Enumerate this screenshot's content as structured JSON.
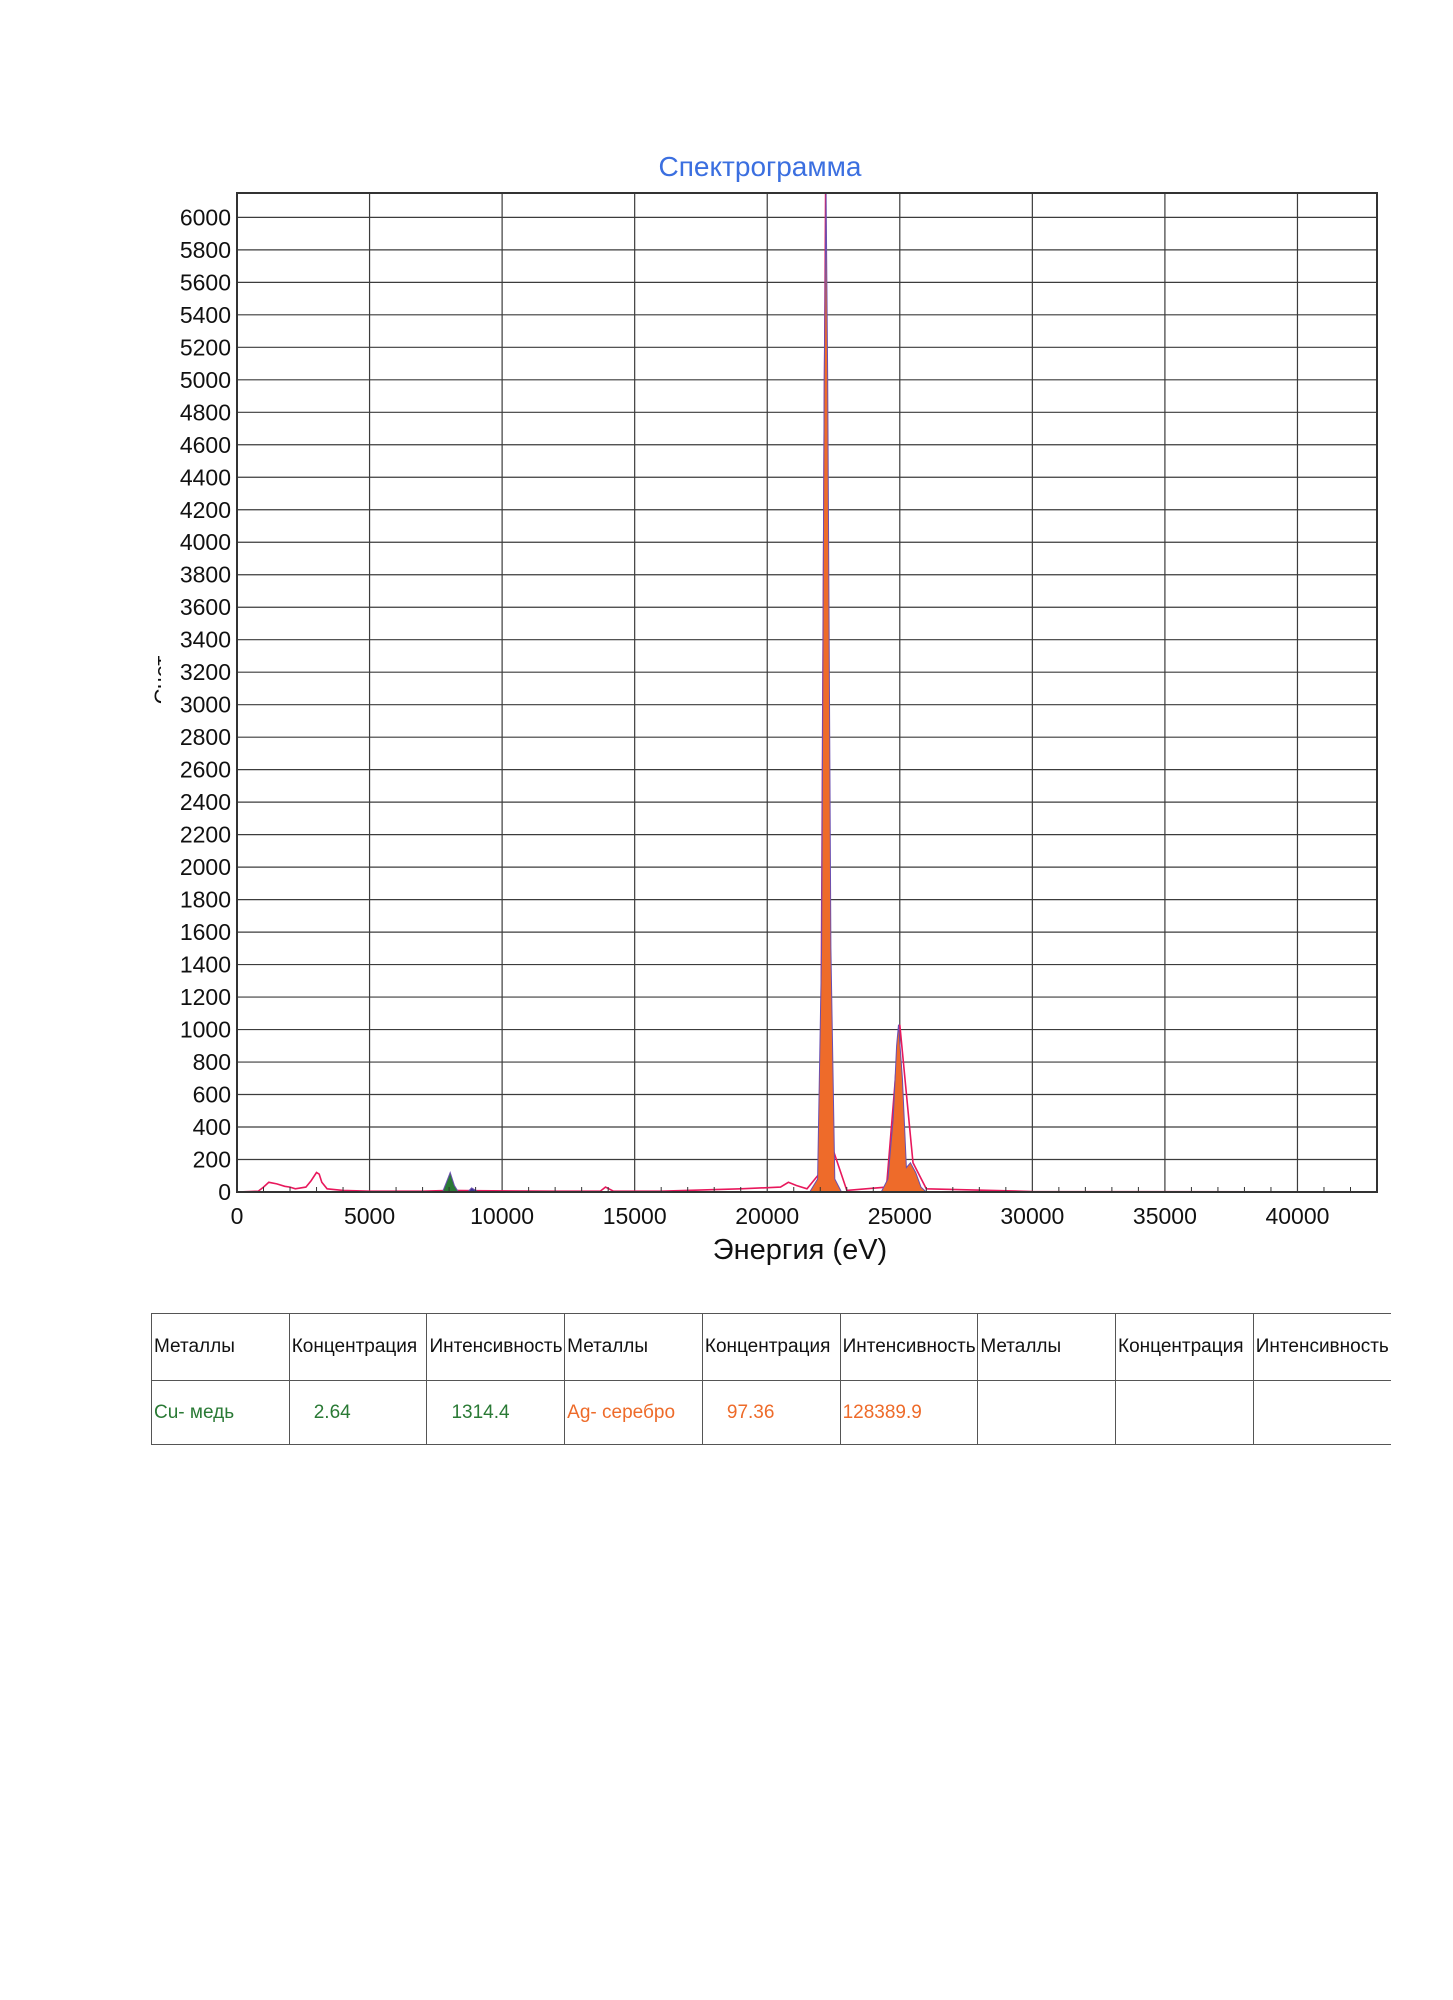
{
  "chart_data": {
    "type": "area",
    "title": "Спектрограмма",
    "xlabel": "Энергия (eV)",
    "ylabel": "Счет",
    "xlim": [
      0,
      43000
    ],
    "ylim": [
      0,
      6150
    ],
    "x_ticks": [
      0,
      5000,
      10000,
      15000,
      20000,
      25000,
      30000,
      35000,
      40000
    ],
    "y_ticks": [
      0,
      200,
      400,
      600,
      800,
      1000,
      1200,
      1400,
      1600,
      1800,
      2000,
      2200,
      2400,
      2600,
      2800,
      3000,
      3200,
      3400,
      3600,
      3800,
      4000,
      4200,
      4400,
      4600,
      4800,
      5000,
      5200,
      5400,
      5600,
      5800,
      6000
    ],
    "grid": true,
    "series": [
      {
        "name": "",
        "color": "#e8185c",
        "x": [
          0,
          800,
          1000,
          1200,
          1500,
          1800,
          2000,
          2200,
          2600,
          2800,
          3000,
          3100,
          3200,
          3400,
          4000,
          5000,
          7000,
          8000,
          9000,
          12000,
          13700,
          13900,
          14200,
          16000,
          19000,
          20500,
          20800,
          21100,
          21500,
          22000,
          22200,
          22400,
          23000,
          24500,
          25000,
          25500,
          26000,
          30000,
          43000
        ],
        "y": [
          0,
          5,
          30,
          60,
          50,
          35,
          30,
          20,
          30,
          70,
          120,
          110,
          60,
          20,
          10,
          5,
          5,
          10,
          8,
          5,
          5,
          30,
          5,
          5,
          20,
          30,
          60,
          40,
          20,
          120,
          6150,
          300,
          10,
          30,
          1030,
          180,
          20,
          3,
          0
        ]
      },
      {
        "name": "Ag",
        "color": "#ee6b2a",
        "x": [
          21600,
          21900,
          22050,
          22150,
          22220,
          22280,
          22400,
          22550,
          22800,
          24300,
          24550,
          24750,
          24880,
          24950,
          25100,
          25250,
          25400,
          25600,
          25800,
          26000
        ],
        "y": [
          0,
          80,
          1500,
          5000,
          6150,
          5000,
          1500,
          80,
          0,
          0,
          80,
          450,
          900,
          1030,
          700,
          150,
          180,
          120,
          30,
          0
        ]
      },
      {
        "name": "Cu",
        "color": "#2a7a35",
        "x": [
          7750,
          7900,
          8040,
          8200,
          8350
        ],
        "y": [
          0,
          60,
          120,
          40,
          0
        ]
      },
      {
        "name": "",
        "color": "#3a2f8f",
        "x": [
          8700,
          8850,
          8950,
          9100
        ],
        "y": [
          0,
          25,
          15,
          0
        ]
      }
    ]
  },
  "table": {
    "headers": [
      "Металлы",
      "Концентрация",
      "Интенсивность",
      "Металлы",
      "Концентрация",
      "Интенсивность",
      "Металлы",
      "Концентрация",
      "Интенсивность"
    ],
    "rows": [
      [
        "Cu- медь",
        "2.64",
        "1314.4",
        "Ag- серебро",
        "97.36",
        "128389.9",
        "",
        "",
        ""
      ]
    ]
  }
}
